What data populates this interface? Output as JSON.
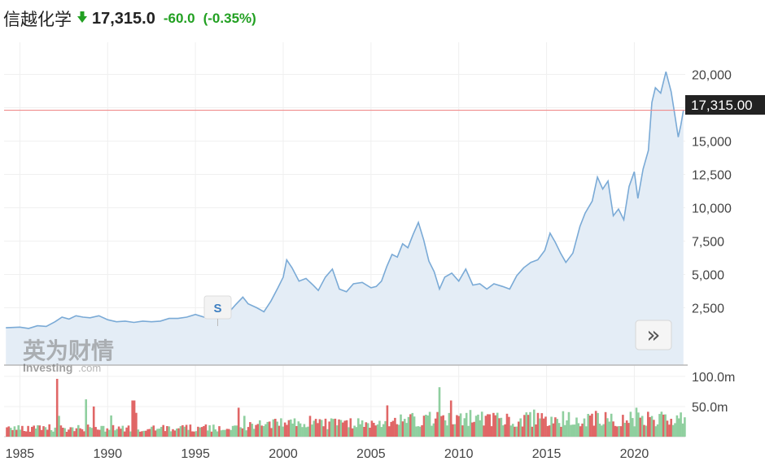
{
  "header": {
    "name": "信越化学",
    "price": "17,315.0",
    "change": "-60.0",
    "change_pct": "(-0.35%)",
    "direction_icon": "down-arrow-icon",
    "down_color": "#22a022"
  },
  "watermark": {
    "brand_cn": "英为财情",
    "brand_en": "Investing",
    "brand_suffix": ".com"
  },
  "split_marker_label": "S",
  "nav_button_symbol": "»",
  "chart_data": {
    "type": "area",
    "x_ticks": [
      1985,
      1990,
      1995,
      2000,
      2005,
      2010,
      2015,
      2020
    ],
    "price_ticks": [
      "2,500",
      "5,000",
      "7,500",
      "10,000",
      "12,500",
      "15,000",
      "20,000"
    ],
    "price_tick_values": [
      2500,
      5000,
      7500,
      10000,
      12500,
      15000,
      20000
    ],
    "price_ylim": [
      -1800,
      21800
    ],
    "current_price": 17315,
    "current_price_label": "17,315.00",
    "volume_ticks": [
      "50.0m",
      "100.0m"
    ],
    "volume_tick_values": [
      50,
      100
    ],
    "volume_ylim": [
      0,
      112
    ],
    "x_range": [
      1984.1,
      2022.9
    ],
    "colors": {
      "line": "#7aaad6",
      "fill": "#e4edf6",
      "ref_line": "#f08c8c",
      "price_tag_bg": "#222222",
      "vol_up": "#8fcf9f",
      "vol_down": "#e06666"
    },
    "price_series": [
      [
        1984.2,
        1000
      ],
      [
        1985.0,
        1050
      ],
      [
        1985.5,
        950
      ],
      [
        1986.0,
        1150
      ],
      [
        1986.5,
        1100
      ],
      [
        1987.0,
        1450
      ],
      [
        1987.4,
        1800
      ],
      [
        1987.8,
        1650
      ],
      [
        1988.2,
        1900
      ],
      [
        1988.6,
        1800
      ],
      [
        1989.0,
        1750
      ],
      [
        1989.5,
        1900
      ],
      [
        1990.0,
        1600
      ],
      [
        1990.5,
        1450
      ],
      [
        1991.0,
        1500
      ],
      [
        1991.5,
        1400
      ],
      [
        1992.0,
        1500
      ],
      [
        1992.5,
        1450
      ],
      [
        1993.0,
        1500
      ],
      [
        1993.5,
        1700
      ],
      [
        1994.0,
        1700
      ],
      [
        1994.5,
        1800
      ],
      [
        1995.0,
        2000
      ],
      [
        1995.5,
        1800
      ],
      [
        1996.0,
        1900
      ],
      [
        1996.5,
        2200
      ],
      [
        1997.0,
        2300
      ],
      [
        1997.3,
        2750
      ],
      [
        1997.7,
        3300
      ],
      [
        1998.0,
        2800
      ],
      [
        1998.5,
        2500
      ],
      [
        1998.9,
        2200
      ],
      [
        1999.3,
        3000
      ],
      [
        1999.7,
        4000
      ],
      [
        2000.0,
        4800
      ],
      [
        2000.2,
        6100
      ],
      [
        2000.5,
        5500
      ],
      [
        2000.9,
        4500
      ],
      [
        2001.3,
        4700
      ],
      [
        2001.7,
        4200
      ],
      [
        2002.0,
        3800
      ],
      [
        2002.4,
        4800
      ],
      [
        2002.8,
        5400
      ],
      [
        2003.2,
        3900
      ],
      [
        2003.6,
        3700
      ],
      [
        2004.0,
        4300
      ],
      [
        2004.5,
        4400
      ],
      [
        2005.0,
        4000
      ],
      [
        2005.3,
        4100
      ],
      [
        2005.6,
        4500
      ],
      [
        2005.9,
        5600
      ],
      [
        2006.2,
        6500
      ],
      [
        2006.5,
        6300
      ],
      [
        2006.8,
        7300
      ],
      [
        2007.1,
        7000
      ],
      [
        2007.4,
        8000
      ],
      [
        2007.7,
        8900
      ],
      [
        2008.0,
        7600
      ],
      [
        2008.3,
        6000
      ],
      [
        2008.6,
        5200
      ],
      [
        2008.9,
        3900
      ],
      [
        2009.2,
        4800
      ],
      [
        2009.6,
        5100
      ],
      [
        2010.0,
        4500
      ],
      [
        2010.4,
        5400
      ],
      [
        2010.8,
        4200
      ],
      [
        2011.2,
        4300
      ],
      [
        2011.6,
        3900
      ],
      [
        2012.0,
        4300
      ],
      [
        2012.5,
        4100
      ],
      [
        2012.9,
        3900
      ],
      [
        2013.3,
        4900
      ],
      [
        2013.7,
        5500
      ],
      [
        2014.1,
        5900
      ],
      [
        2014.5,
        6100
      ],
      [
        2014.9,
        6800
      ],
      [
        2015.2,
        8100
      ],
      [
        2015.5,
        7400
      ],
      [
        2015.8,
        6600
      ],
      [
        2016.1,
        5900
      ],
      [
        2016.5,
        6600
      ],
      [
        2016.9,
        8600
      ],
      [
        2017.2,
        9600
      ],
      [
        2017.6,
        10500
      ],
      [
        2017.9,
        12300
      ],
      [
        2018.2,
        11400
      ],
      [
        2018.5,
        12000
      ],
      [
        2018.8,
        9400
      ],
      [
        2019.1,
        9900
      ],
      [
        2019.4,
        9100
      ],
      [
        2019.7,
        11600
      ],
      [
        2020.0,
        12700
      ],
      [
        2020.2,
        10700
      ],
      [
        2020.5,
        12900
      ],
      [
        2020.8,
        14300
      ],
      [
        2021.0,
        17900
      ],
      [
        2021.2,
        19000
      ],
      [
        2021.5,
        18600
      ],
      [
        2021.8,
        20200
      ],
      [
        2022.1,
        18700
      ],
      [
        2022.3,
        17000
      ],
      [
        2022.5,
        15300
      ],
      [
        2022.65,
        16200
      ],
      [
        2022.8,
        17315
      ]
    ]
  }
}
